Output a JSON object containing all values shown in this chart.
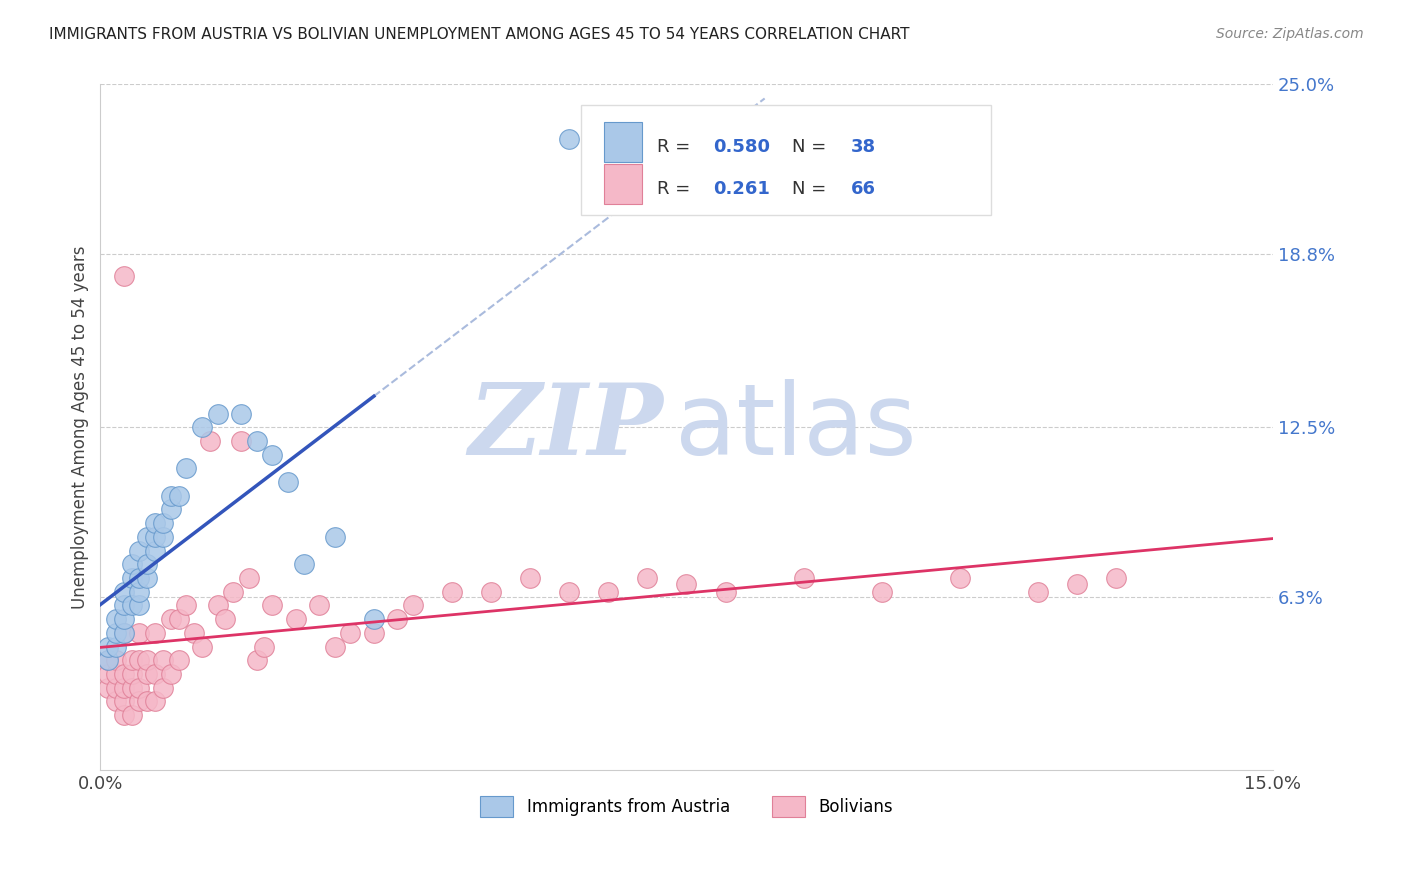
{
  "title": "IMMIGRANTS FROM AUSTRIA VS BOLIVIAN UNEMPLOYMENT AMONG AGES 45 TO 54 YEARS CORRELATION CHART",
  "source": "Source: ZipAtlas.com",
  "ylabel_left": "Unemployment Among Ages 45 to 54 years",
  "x_min": 0.0,
  "x_max": 0.15,
  "y_min": 0.0,
  "y_max": 0.25,
  "y_ticks_right": [
    0.063,
    0.125,
    0.188,
    0.25
  ],
  "y_tick_labels_right": [
    "6.3%",
    "12.5%",
    "18.8%",
    "25.0%"
  ],
  "series1_color": "#aac8e8",
  "series1_edge": "#6699cc",
  "series2_color": "#f5b8c8",
  "series2_edge": "#e08098",
  "trend1_color": "#3355bb",
  "trend2_color": "#dd3366",
  "dashed_line_color": "#aabbdd",
  "watermark_zip_color": "#ccd8ee",
  "watermark_atlas_color": "#ccd8ee",
  "austria_x": [
    0.001,
    0.001,
    0.002,
    0.002,
    0.002,
    0.003,
    0.003,
    0.003,
    0.003,
    0.004,
    0.004,
    0.004,
    0.005,
    0.005,
    0.005,
    0.005,
    0.006,
    0.006,
    0.006,
    0.007,
    0.007,
    0.007,
    0.008,
    0.008,
    0.009,
    0.009,
    0.01,
    0.011,
    0.013,
    0.015,
    0.018,
    0.02,
    0.022,
    0.024,
    0.026,
    0.03,
    0.035,
    0.06
  ],
  "austria_y": [
    0.04,
    0.045,
    0.045,
    0.05,
    0.055,
    0.05,
    0.055,
    0.06,
    0.065,
    0.06,
    0.07,
    0.075,
    0.06,
    0.065,
    0.07,
    0.08,
    0.07,
    0.075,
    0.085,
    0.08,
    0.085,
    0.09,
    0.085,
    0.09,
    0.095,
    0.1,
    0.1,
    0.11,
    0.125,
    0.13,
    0.13,
    0.12,
    0.115,
    0.105,
    0.075,
    0.085,
    0.055,
    0.23
  ],
  "bolivia_x": [
    0.001,
    0.001,
    0.001,
    0.002,
    0.002,
    0.002,
    0.002,
    0.003,
    0.003,
    0.003,
    0.003,
    0.003,
    0.004,
    0.004,
    0.004,
    0.004,
    0.005,
    0.005,
    0.005,
    0.005,
    0.006,
    0.006,
    0.006,
    0.007,
    0.007,
    0.007,
    0.008,
    0.008,
    0.009,
    0.009,
    0.01,
    0.01,
    0.011,
    0.012,
    0.013,
    0.014,
    0.015,
    0.016,
    0.017,
    0.018,
    0.019,
    0.02,
    0.021,
    0.022,
    0.025,
    0.028,
    0.03,
    0.032,
    0.035,
    0.038,
    0.04,
    0.045,
    0.05,
    0.055,
    0.06,
    0.065,
    0.07,
    0.075,
    0.08,
    0.09,
    0.1,
    0.11,
    0.12,
    0.125,
    0.13,
    0.003
  ],
  "bolivia_y": [
    0.03,
    0.035,
    0.04,
    0.025,
    0.03,
    0.035,
    0.04,
    0.02,
    0.025,
    0.03,
    0.035,
    0.05,
    0.02,
    0.03,
    0.035,
    0.04,
    0.025,
    0.03,
    0.04,
    0.05,
    0.025,
    0.035,
    0.04,
    0.025,
    0.035,
    0.05,
    0.03,
    0.04,
    0.035,
    0.055,
    0.04,
    0.055,
    0.06,
    0.05,
    0.045,
    0.12,
    0.06,
    0.055,
    0.065,
    0.12,
    0.07,
    0.04,
    0.045,
    0.06,
    0.055,
    0.06,
    0.045,
    0.05,
    0.05,
    0.055,
    0.06,
    0.065,
    0.065,
    0.07,
    0.065,
    0.065,
    0.07,
    0.068,
    0.065,
    0.07,
    0.065,
    0.07,
    0.065,
    0.068,
    0.07,
    0.18
  ]
}
